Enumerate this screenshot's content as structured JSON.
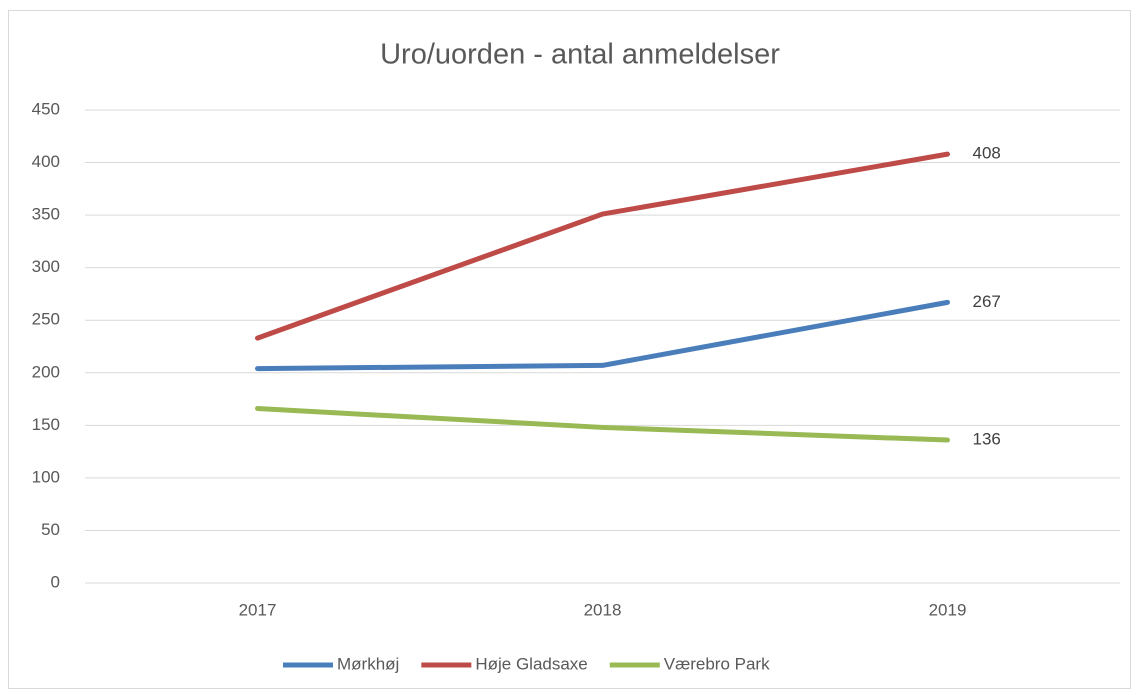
{
  "chart_data": {
    "type": "line",
    "title": "Uro/uorden - antal anmeldelser",
    "categories": [
      "2017",
      "2018",
      "2019"
    ],
    "series": [
      {
        "name": "Mørkhøj",
        "color": "#4a7ebb",
        "values": [
          204,
          207,
          267
        ]
      },
      {
        "name": "Høje Gladsaxe",
        "color": "#be4b48",
        "values": [
          233,
          351,
          408
        ]
      },
      {
        "name": "Værebro Park",
        "color": "#98b954",
        "values": [
          166,
          148,
          136
        ]
      }
    ],
    "ylim": [
      0,
      450
    ],
    "yticks": [
      0,
      50,
      100,
      150,
      200,
      250,
      300,
      350,
      400,
      450
    ],
    "grid": true,
    "legend": "bottom"
  }
}
